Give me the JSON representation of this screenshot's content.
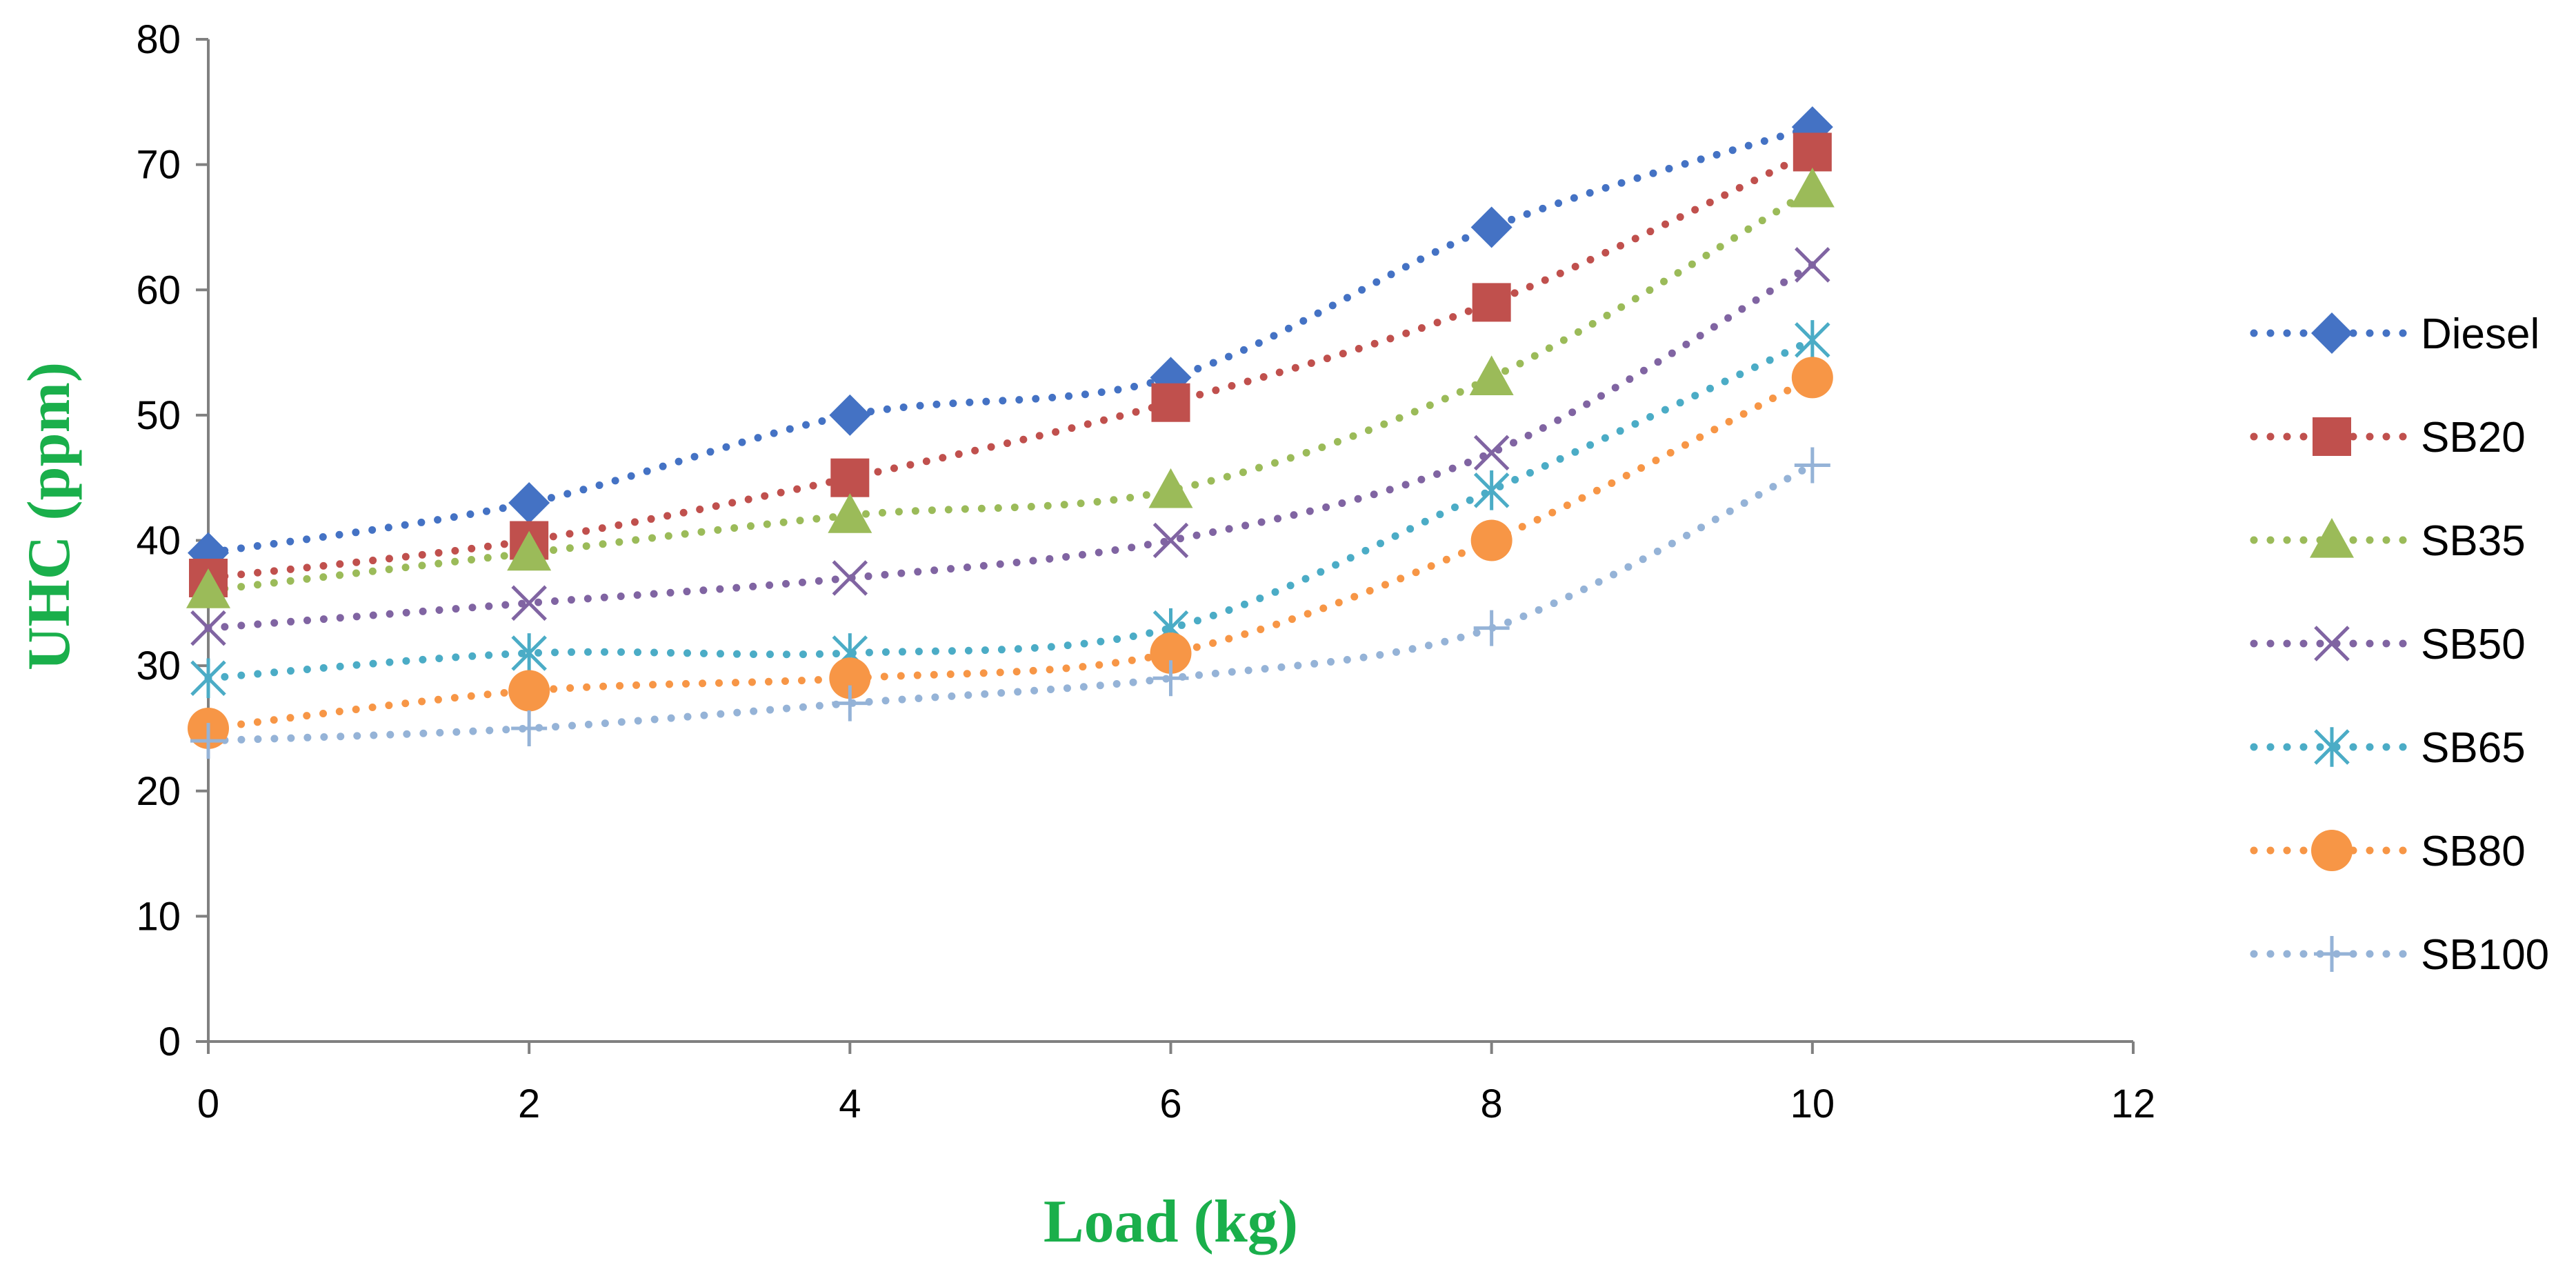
{
  "chart_data": {
    "type": "line",
    "title": "",
    "xlabel": "Load (kg)",
    "ylabel": "UHC (ppm)",
    "axis_title_color": "#1aaf4b",
    "xlim": [
      0,
      12
    ],
    "ylim": [
      0,
      80
    ],
    "xticks": [
      0,
      2,
      4,
      6,
      8,
      10,
      12
    ],
    "yticks": [
      0,
      10,
      20,
      30,
      40,
      50,
      60,
      70,
      80
    ],
    "grid": false,
    "legend_position": "right",
    "line_style": "dotted smoothed",
    "x": [
      0,
      2,
      4,
      6,
      8,
      10
    ],
    "series": [
      {
        "name": "Diesel",
        "marker": "diamond",
        "color": "#4472c4",
        "values": [
          39,
          43,
          50,
          53,
          65,
          73
        ]
      },
      {
        "name": "SB20",
        "marker": "square",
        "color": "#c0504d",
        "values": [
          37,
          40,
          45,
          51,
          59,
          71
        ]
      },
      {
        "name": "SB35",
        "marker": "triangle",
        "color": "#9bbb59",
        "values": [
          36,
          39,
          42,
          44,
          53,
          68
        ]
      },
      {
        "name": "SB50",
        "marker": "x",
        "color": "#8064a2",
        "values": [
          33,
          35,
          37,
          40,
          47,
          62
        ]
      },
      {
        "name": "SB65",
        "marker": "asterisk",
        "color": "#4bacc6",
        "values": [
          29,
          31,
          31,
          33,
          44,
          56
        ]
      },
      {
        "name": "SB80",
        "marker": "circle",
        "color": "#f79646",
        "values": [
          25,
          28,
          29,
          31,
          40,
          53
        ]
      },
      {
        "name": "SB100",
        "marker": "plus",
        "color": "#95b3d7",
        "values": [
          24,
          25,
          27,
          29,
          33,
          46
        ]
      }
    ]
  }
}
